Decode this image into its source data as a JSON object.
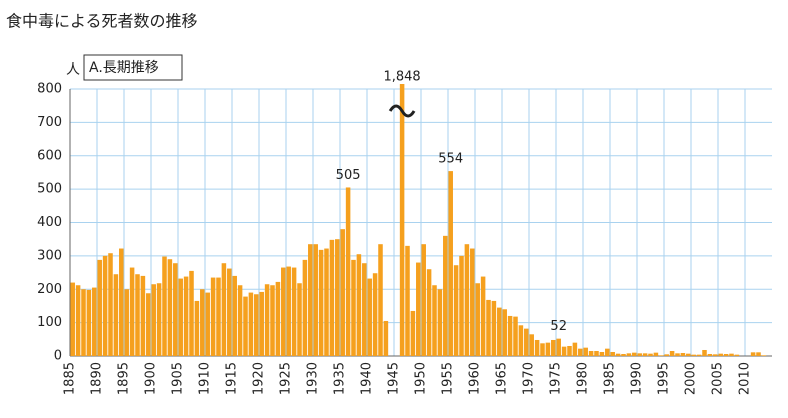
{
  "chart_data": {
    "type": "bar",
    "title": "食中毒による死者数の推移",
    "subtitle": "A.長期推移",
    "y_unit": "人",
    "categories": [
      "1885",
      null,
      null,
      null,
      null,
      "1890",
      null,
      null,
      null,
      null,
      "1895",
      null,
      null,
      null,
      null,
      "1900",
      null,
      null,
      null,
      null,
      "1905",
      null,
      null,
      null,
      null,
      "1910",
      null,
      null,
      null,
      null,
      "1915",
      null,
      null,
      null,
      null,
      "1920",
      null,
      null,
      null,
      null,
      "1925",
      null,
      null,
      null,
      null,
      "1930",
      null,
      null,
      null,
      null,
      "1935",
      null,
      null,
      null,
      null,
      "1940",
      null,
      null,
      null,
      null,
      "1945",
      null,
      null,
      null,
      null,
      "1950",
      null,
      null,
      null,
      null,
      "1955",
      null,
      null,
      null,
      null,
      "1960",
      null,
      null,
      null,
      null,
      "1965",
      null,
      null,
      null,
      null,
      "1970",
      null,
      null,
      null,
      null,
      "1975",
      null,
      null,
      null,
      null,
      "1980",
      null,
      null,
      null,
      null,
      "1985",
      null,
      null,
      null,
      null,
      "1990",
      null,
      null,
      null,
      null,
      "1995",
      null,
      null,
      null,
      null,
      "2000",
      null,
      null,
      null,
      null,
      "2005",
      null,
      null,
      null,
      null,
      "2010",
      null,
      null,
      null
    ],
    "values": [
      220,
      212,
      200,
      198,
      205,
      288,
      300,
      308,
      245,
      322,
      200,
      265,
      245,
      240,
      188,
      215,
      218,
      298,
      290,
      278,
      232,
      238,
      255,
      165,
      200,
      190,
      235,
      235,
      278,
      262,
      240,
      212,
      178,
      190,
      185,
      192,
      215,
      212,
      222,
      265,
      268,
      265,
      218,
      288,
      335,
      335,
      318,
      322,
      348,
      350,
      380,
      505,
      288,
      305,
      278,
      232,
      248,
      335,
      105,
      null,
      null,
      1848,
      330,
      135,
      280,
      335,
      260,
      212,
      200,
      360,
      554,
      272,
      300,
      335,
      322,
      218,
      238,
      168,
      165,
      145,
      140,
      120,
      118,
      92,
      82,
      65,
      48,
      38,
      40,
      48,
      52,
      28,
      30,
      40,
      22,
      25,
      15,
      15,
      12,
      22,
      12,
      7,
      6,
      8,
      10,
      8,
      8,
      7,
      10,
      2,
      5,
      15,
      8,
      9,
      7,
      4,
      4,
      18,
      6,
      5,
      7,
      6,
      7,
      4,
      0,
      0,
      11,
      11,
      2
    ],
    "value_labels": [
      null,
      null,
      null,
      null,
      null,
      null,
      null,
      null,
      null,
      null,
      null,
      null,
      null,
      null,
      null,
      null,
      null,
      null,
      null,
      null,
      null,
      null,
      null,
      null,
      null,
      null,
      null,
      null,
      null,
      null,
      null,
      null,
      null,
      null,
      null,
      null,
      null,
      null,
      null,
      null,
      null,
      null,
      null,
      null,
      null,
      null,
      null,
      null,
      null,
      null,
      null,
      "505",
      null,
      null,
      null,
      null,
      null,
      null,
      null,
      null,
      null,
      "1,848",
      null,
      null,
      null,
      null,
      null,
      null,
      null,
      null,
      "554",
      null,
      null,
      null,
      null,
      null,
      null,
      null,
      null,
      null,
      null,
      null,
      null,
      null,
      null,
      null,
      null,
      null,
      null,
      null,
      "52",
      null,
      null,
      null,
      null,
      null,
      null,
      null,
      null,
      null,
      null,
      null,
      null,
      null,
      null,
      null,
      null,
      null,
      null,
      null,
      null,
      null,
      null,
      null,
      null,
      null,
      null,
      null,
      null,
      null,
      null,
      null,
      null,
      null,
      null,
      null,
      null,
      null,
      null
    ],
    "color": "#f5a01e",
    "ylim": [
      0,
      800
    ],
    "yticks": [
      0,
      100,
      200,
      300,
      400,
      500,
      600,
      700,
      800
    ],
    "grid": true
  }
}
